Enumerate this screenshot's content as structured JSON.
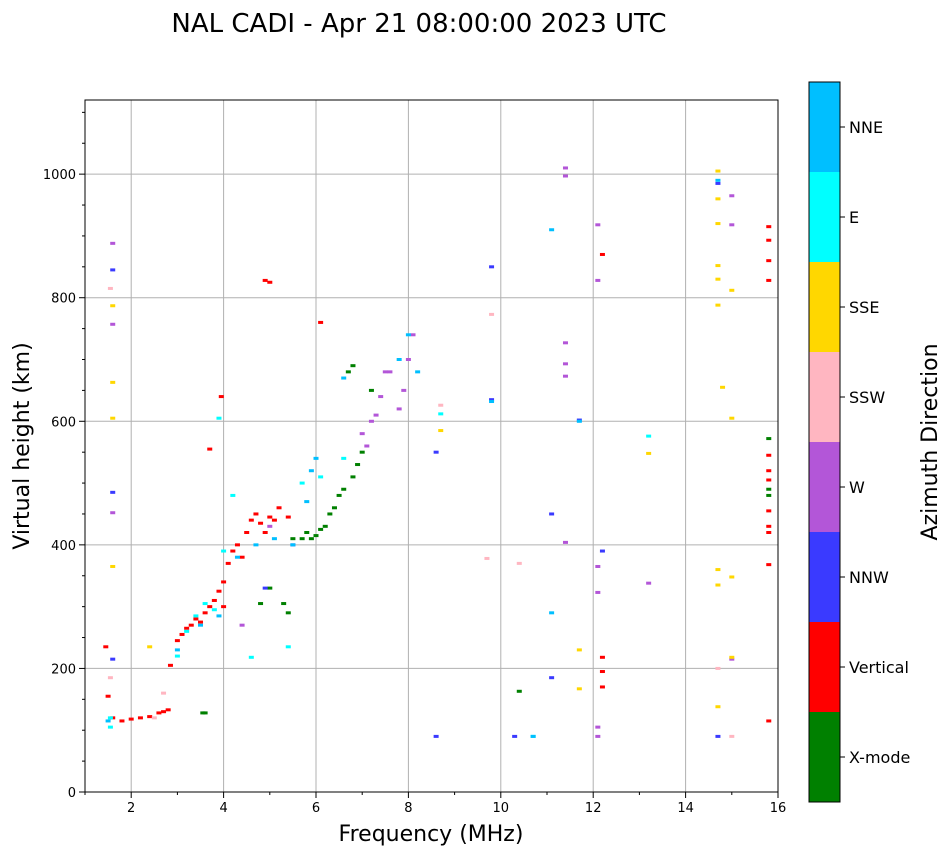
{
  "chart_data": {
    "type": "scatter",
    "title": "NAL CADI - Apr 21 08:00:00 2023 UTC",
    "xlabel": "Frequency (MHz)",
    "ylabel": "Virtual height (km)",
    "xlim": [
      1,
      16
    ],
    "ylim": [
      0,
      1120
    ],
    "xticks": [
      2,
      4,
      6,
      8,
      10,
      12,
      14,
      16
    ],
    "yticks": [
      0,
      200,
      400,
      600,
      800,
      1000
    ],
    "grid": true,
    "colorbar": {
      "label": "Azimuth Direction",
      "entries": [
        {
          "name": "X-mode",
          "color": "#008000"
        },
        {
          "name": "Vertical",
          "color": "#ff0000"
        },
        {
          "name": "NNW",
          "color": "#3a3aff"
        },
        {
          "name": "W",
          "color": "#b356d8"
        },
        {
          "name": "SSW",
          "color": "#ffb6c1"
        },
        {
          "name": "SSE",
          "color": "#ffd700"
        },
        {
          "name": "E",
          "color": "#00ffff"
        },
        {
          "name": "NNE",
          "color": "#00bfff"
        }
      ]
    },
    "series": [
      {
        "name": "X-mode",
        "color": "#008000",
        "points": [
          [
            3.55,
            128
          ],
          [
            3.6,
            128
          ],
          [
            4.8,
            305
          ],
          [
            5.0,
            330
          ],
          [
            5.3,
            305
          ],
          [
            5.4,
            290
          ],
          [
            5.5,
            410
          ],
          [
            5.7,
            410
          ],
          [
            5.8,
            420
          ],
          [
            5.9,
            410
          ],
          [
            6.0,
            415
          ],
          [
            6.1,
            425
          ],
          [
            6.2,
            430
          ],
          [
            6.3,
            450
          ],
          [
            6.4,
            460
          ],
          [
            6.5,
            480
          ],
          [
            6.6,
            490
          ],
          [
            6.8,
            510
          ],
          [
            6.9,
            530
          ],
          [
            7.0,
            550
          ],
          [
            6.7,
            680
          ],
          [
            6.8,
            690
          ],
          [
            7.2,
            650
          ],
          [
            10.4,
            163
          ],
          [
            15.8,
            572
          ],
          [
            15.8,
            480
          ],
          [
            15.8,
            490
          ]
        ]
      },
      {
        "name": "Vertical",
        "color": "#ff0000",
        "points": [
          [
            1.45,
            235
          ],
          [
            1.5,
            155
          ],
          [
            1.6,
            120
          ],
          [
            1.8,
            115
          ],
          [
            2.0,
            118
          ],
          [
            2.2,
            120
          ],
          [
            2.4,
            122
          ],
          [
            2.6,
            128
          ],
          [
            2.7,
            130
          ],
          [
            2.8,
            133
          ],
          [
            2.85,
            205
          ],
          [
            3.0,
            245
          ],
          [
            3.1,
            255
          ],
          [
            3.2,
            265
          ],
          [
            3.3,
            270
          ],
          [
            3.4,
            280
          ],
          [
            3.5,
            275
          ],
          [
            3.6,
            290
          ],
          [
            3.7,
            300
          ],
          [
            3.8,
            310
          ],
          [
            3.9,
            325
          ],
          [
            4.0,
            340
          ],
          [
            4.1,
            370
          ],
          [
            4.2,
            390
          ],
          [
            4.3,
            400
          ],
          [
            4.4,
            380
          ],
          [
            4.5,
            420
          ],
          [
            4.6,
            440
          ],
          [
            4.7,
            450
          ],
          [
            4.8,
            435
          ],
          [
            4.9,
            420
          ],
          [
            5.0,
            445
          ],
          [
            5.1,
            440
          ],
          [
            5.2,
            460
          ],
          [
            5.4,
            445
          ],
          [
            4.9,
            828
          ],
          [
            5.0,
            825
          ],
          [
            6.1,
            760
          ],
          [
            3.95,
            640
          ],
          [
            3.7,
            555
          ],
          [
            4.0,
            300
          ],
          [
            12.2,
            870
          ],
          [
            12.2,
            218
          ],
          [
            12.2,
            195
          ],
          [
            12.2,
            170
          ],
          [
            15.8,
            915
          ],
          [
            15.8,
            893
          ],
          [
            15.8,
            860
          ],
          [
            15.8,
            828
          ],
          [
            15.8,
            545
          ],
          [
            15.8,
            520
          ],
          [
            15.8,
            505
          ],
          [
            15.8,
            455
          ],
          [
            15.8,
            430
          ],
          [
            15.8,
            420
          ],
          [
            15.8,
            368
          ],
          [
            15.8,
            115
          ]
        ]
      },
      {
        "name": "NNW",
        "color": "#3a3aff",
        "points": [
          [
            1.6,
            845
          ],
          [
            1.6,
            485
          ],
          [
            1.6,
            215
          ],
          [
            4.9,
            330
          ],
          [
            5.5,
            400
          ],
          [
            8.6,
            550
          ],
          [
            8.6,
            90
          ],
          [
            9.8,
            850
          ],
          [
            9.8,
            635
          ],
          [
            10.3,
            90
          ],
          [
            11.1,
            450
          ],
          [
            11.1,
            185
          ],
          [
            11.7,
            602
          ],
          [
            12.2,
            390
          ],
          [
            14.7,
            985
          ],
          [
            14.7,
            90
          ]
        ]
      },
      {
        "name": "W",
        "color": "#b356d8",
        "points": [
          [
            1.6,
            888
          ],
          [
            1.6,
            757
          ],
          [
            1.6,
            452
          ],
          [
            4.4,
            270
          ],
          [
            5.0,
            430
          ],
          [
            7.0,
            580
          ],
          [
            7.1,
            560
          ],
          [
            7.2,
            600
          ],
          [
            7.3,
            610
          ],
          [
            7.4,
            640
          ],
          [
            7.5,
            680
          ],
          [
            7.6,
            680
          ],
          [
            7.8,
            620
          ],
          [
            7.9,
            650
          ],
          [
            8.0,
            700
          ],
          [
            8.1,
            740
          ],
          [
            11.4,
            1010
          ],
          [
            11.4,
            997
          ],
          [
            11.4,
            727
          ],
          [
            11.4,
            693
          ],
          [
            11.4,
            673
          ],
          [
            11.4,
            404
          ],
          [
            12.1,
            918
          ],
          [
            12.1,
            828
          ],
          [
            12.1,
            365
          ],
          [
            12.1,
            323
          ],
          [
            12.1,
            105
          ],
          [
            12.1,
            90
          ],
          [
            13.2,
            338
          ],
          [
            15.0,
            965
          ],
          [
            15.0,
            918
          ],
          [
            15.0,
            215
          ]
        ]
      },
      {
        "name": "SSW",
        "color": "#ffb6c1",
        "points": [
          [
            1.55,
            815
          ],
          [
            1.55,
            185
          ],
          [
            2.5,
            120
          ],
          [
            2.7,
            160
          ],
          [
            8.7,
            626
          ],
          [
            9.7,
            378
          ],
          [
            9.8,
            773
          ],
          [
            10.4,
            370
          ],
          [
            14.7,
            200
          ],
          [
            15.0,
            90
          ]
        ]
      },
      {
        "name": "SSE",
        "color": "#ffd700",
        "points": [
          [
            1.6,
            787
          ],
          [
            1.6,
            663
          ],
          [
            1.6,
            605
          ],
          [
            1.6,
            365
          ],
          [
            2.4,
            235
          ],
          [
            8.7,
            585
          ],
          [
            11.7,
            230
          ],
          [
            11.7,
            167
          ],
          [
            13.2,
            548
          ],
          [
            14.7,
            1005
          ],
          [
            14.7,
            960
          ],
          [
            14.7,
            920
          ],
          [
            14.7,
            852
          ],
          [
            14.7,
            830
          ],
          [
            14.7,
            788
          ],
          [
            14.8,
            655
          ],
          [
            15.0,
            605
          ],
          [
            15.0,
            812
          ],
          [
            15.0,
            348
          ],
          [
            14.7,
            360
          ],
          [
            14.7,
            335
          ],
          [
            14.7,
            138
          ],
          [
            15.0,
            218
          ]
        ]
      },
      {
        "name": "E",
        "color": "#00ffff",
        "points": [
          [
            1.55,
            120
          ],
          [
            1.55,
            105
          ],
          [
            3.0,
            220
          ],
          [
            3.2,
            260
          ],
          [
            3.4,
            285
          ],
          [
            3.6,
            305
          ],
          [
            3.8,
            295
          ],
          [
            4.0,
            390
          ],
          [
            4.2,
            480
          ],
          [
            5.4,
            235
          ],
          [
            5.7,
            500
          ],
          [
            6.1,
            510
          ],
          [
            6.6,
            540
          ],
          [
            8.7,
            612
          ],
          [
            10.7,
            90
          ],
          [
            13.2,
            576
          ],
          [
            3.9,
            605
          ],
          [
            4.6,
            218
          ]
        ]
      },
      {
        "name": "NNE",
        "color": "#00bfff",
        "points": [
          [
            1.5,
            115
          ],
          [
            3.0,
            230
          ],
          [
            3.5,
            270
          ],
          [
            3.9,
            285
          ],
          [
            4.3,
            380
          ],
          [
            4.7,
            400
          ],
          [
            5.1,
            410
          ],
          [
            5.5,
            400
          ],
          [
            5.8,
            470
          ],
          [
            5.9,
            520
          ],
          [
            6.0,
            540
          ],
          [
            6.6,
            670
          ],
          [
            7.8,
            700
          ],
          [
            8.0,
            740
          ],
          [
            8.2,
            680
          ],
          [
            9.8,
            632
          ],
          [
            10.7,
            90
          ],
          [
            11.1,
            910
          ],
          [
            11.1,
            290
          ],
          [
            11.7,
            600
          ],
          [
            14.7,
            990
          ]
        ]
      }
    ]
  }
}
